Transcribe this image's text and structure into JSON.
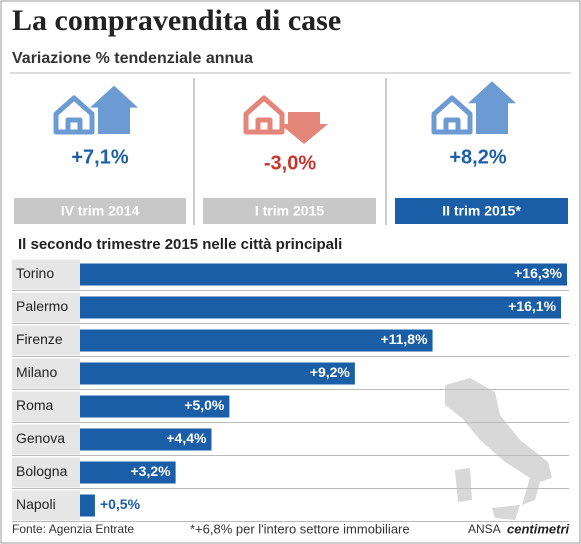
{
  "title": "La compravendita di case",
  "subtitle": "Variazione % tendenziale annua",
  "panels": [
    {
      "period": "IV trim 2014",
      "value": 7.1,
      "value_label": "+7,1%"
    },
    {
      "period": "I trim 2015",
      "value": -3.0,
      "value_label": "-3,0%"
    },
    {
      "period": "II trim 2015*",
      "value": 8.2,
      "value_label": "+8,2%"
    }
  ],
  "chart_data": {
    "type": "bar",
    "title": "Il secondo trimestre 2015 nelle città principali",
    "categories": [
      "Torino",
      "Palermo",
      "Firenze",
      "Milano",
      "Roma",
      "Genova",
      "Bologna",
      "Napoli"
    ],
    "values": [
      16.3,
      16.1,
      11.8,
      9.2,
      5.0,
      4.4,
      3.2,
      0.5
    ],
    "value_labels": [
      "+16,3%",
      "+16,1%",
      "+11,8%",
      "+9,2%",
      "+5,0%",
      "+4,4%",
      "+3,2%",
      "+0,5%"
    ],
    "color": "#1a5ea8"
  },
  "footer": {
    "source": "Fonte: Agenzia Entrate",
    "note": "*+6,8% per l'intero settore immobiliare",
    "brand": "ANSA",
    "brand2": "centimetri"
  }
}
